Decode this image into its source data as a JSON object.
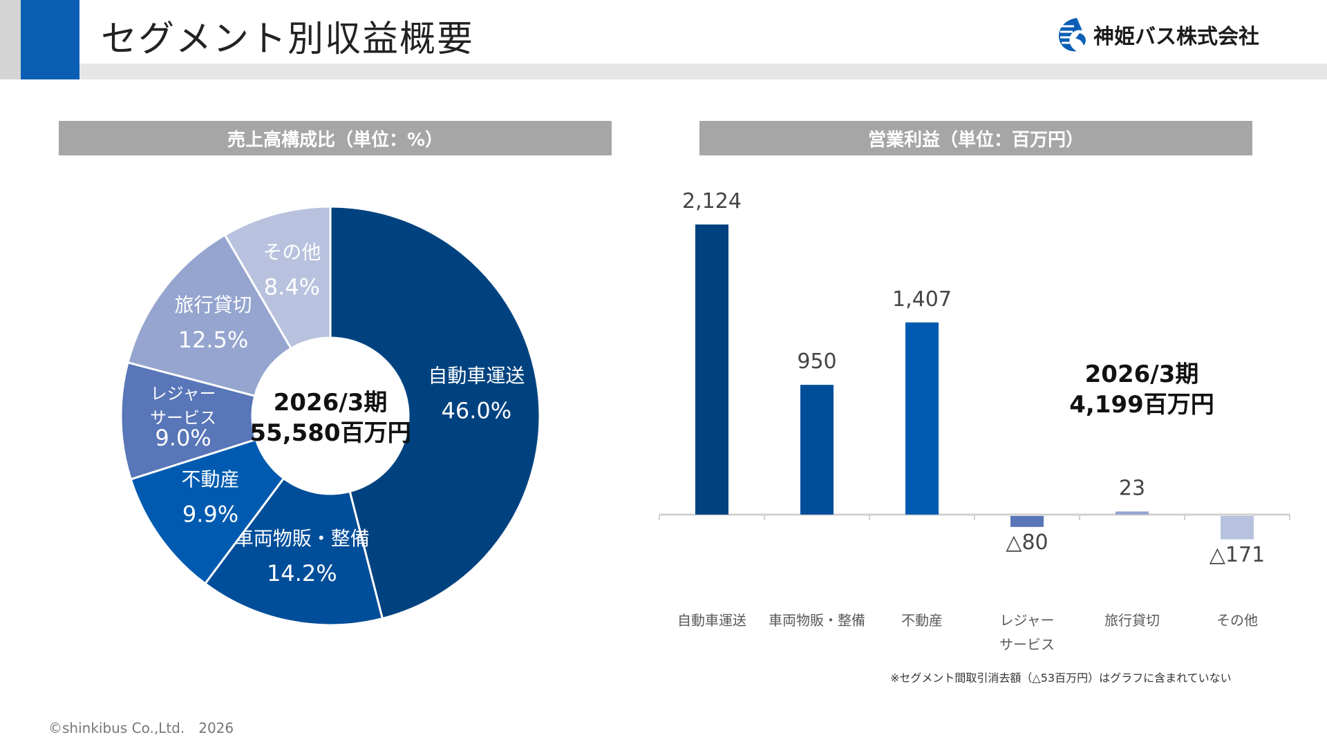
{
  "header": {
    "title": "セグメント別収益概要",
    "company": "神姫バス株式会社"
  },
  "pie_section": {
    "title": "売上高構成比（単位：%）"
  },
  "bar_section": {
    "title": "営業利益（単位：百万円）"
  },
  "chart_data": [
    {
      "type": "pie",
      "title": "売上高構成比（単位：%）",
      "center_label": [
        "2026/3期",
        "55,580百万円"
      ],
      "slices": [
        {
          "label": "自動車運送",
          "value": 46.0,
          "value_label": "46.0%",
          "color": "#00427f"
        },
        {
          "label": "車両物販・整備",
          "value": 14.2,
          "value_label": "14.2%",
          "color": "#004e9a"
        },
        {
          "label": "不動産",
          "value": 9.9,
          "value_label": "9.9%",
          "color": "#005bb0"
        },
        {
          "label": "レジャー\nサービス",
          "value": 9.0,
          "value_label": "9.0%",
          "color": "#5876b8"
        },
        {
          "label": "旅行貸切",
          "value": 12.5,
          "value_label": "12.5%",
          "color": "#95a5cf"
        },
        {
          "label": "その他",
          "value": 8.4,
          "value_label": "8.4%",
          "color": "#b8c2de"
        }
      ]
    },
    {
      "type": "bar",
      "title": "営業利益（単位：百万円）",
      "total_label": [
        "2026/3期",
        "4,199百万円"
      ],
      "categories": [
        "自動車運送",
        "車両物販・整備",
        "不動産",
        "レジャー\nサービス",
        "旅行貸切",
        "その他"
      ],
      "values": [
        2124,
        950,
        1407,
        -80,
        23,
        -171
      ],
      "value_labels": [
        "2,124",
        "950",
        "1,407",
        "△80",
        "23",
        "△171"
      ],
      "colors": [
        "#00427f",
        "#004e9a",
        "#005bb0",
        "#5876b8",
        "#95a5cf",
        "#b8c2de"
      ]
    }
  ],
  "footnote": "※セグメント間取引消去額（△53百万円）はグラフに含まれていない",
  "copyright": "©shinkibus Co.,Ltd.　2026"
}
